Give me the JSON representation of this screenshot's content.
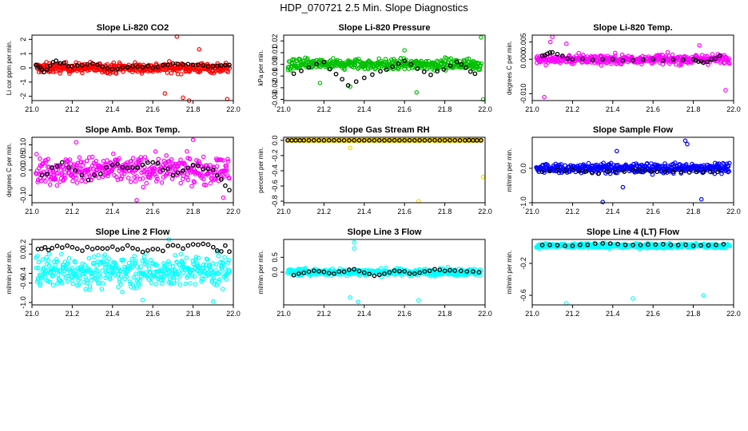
{
  "figure_title": "HDP_070721  2.5 Min. Slope Diagnostics",
  "chart_data": [
    {
      "type": "scatter",
      "title": "Slope Li-820 CO2",
      "ylabel": "Li cor ppm per min.",
      "xlim": [
        21.0,
        22.0
      ],
      "ylim": [
        -2.3,
        2.3
      ],
      "xticks": [
        "21.0",
        "21.2",
        "21.4",
        "21.6",
        "21.8",
        "22.0"
      ],
      "yticks": [
        "-2",
        "-1",
        "0",
        "1",
        "2"
      ],
      "colors": {
        "primary": "#ff0000",
        "secondary": "#000000"
      },
      "noise": {
        "spread": 0.3,
        "center": 0.0,
        "outliers": [
          [
            21.72,
            2.2
          ],
          [
            21.75,
            -2.1
          ],
          [
            21.78,
            -2.3
          ],
          [
            21.97,
            -2.2
          ],
          [
            21.83,
            1.3
          ],
          [
            21.66,
            -1.8
          ]
        ]
      },
      "series": [
        {
          "values": [
            [
              21.02,
              0.2
            ],
            [
              21.06,
              -0.3
            ],
            [
              21.12,
              0.5
            ],
            [
              21.2,
              0.1
            ],
            [
              21.3,
              0.3
            ],
            [
              21.4,
              -0.1
            ],
            [
              21.5,
              0.1
            ],
            [
              21.6,
              0.0
            ],
            [
              21.7,
              0.3
            ],
            [
              21.8,
              0.2
            ],
            [
              21.9,
              0.1
            ],
            [
              21.98,
              0.2
            ]
          ]
        }
      ]
    },
    {
      "type": "scatter",
      "title": "Slope Li-820 Pressure",
      "ylabel": "kPa per min.",
      "xlim": [
        21.0,
        22.0
      ],
      "ylim": [
        -0.031,
        0.025
      ],
      "xticks": [
        "21.0",
        "21.2",
        "21.4",
        "21.6",
        "21.8",
        "22.0"
      ],
      "yticks": [
        "-0.03",
        "-0.02",
        "-0.01",
        "0.00",
        "0.01",
        "0.02"
      ],
      "colors": {
        "primary": "#00c000",
        "secondary": "#000000"
      },
      "noise": {
        "spread": 0.004,
        "center": 0.0,
        "outliers": [
          [
            21.33,
            -0.019
          ],
          [
            21.66,
            -0.024
          ],
          [
            21.98,
            0.023
          ],
          [
            21.99,
            -0.03
          ],
          [
            21.18,
            -0.016
          ],
          [
            21.6,
            0.012
          ]
        ]
      },
      "series": [
        {
          "values": [
            [
              21.05,
              -0.008
            ],
            [
              21.2,
              0.002
            ],
            [
              21.32,
              -0.018
            ],
            [
              21.48,
              -0.006
            ],
            [
              21.6,
              0.003
            ],
            [
              21.73,
              -0.009
            ],
            [
              21.86,
              0.002
            ],
            [
              21.95,
              -0.008
            ]
          ]
        }
      ]
    },
    {
      "type": "scatter",
      "title": "Slope Li-820 Temp.",
      "ylabel": "degrees C per min.",
      "xlim": [
        21.0,
        22.0
      ],
      "ylim": [
        -0.012,
        0.007
      ],
      "xticks": [
        "21.0",
        "21.2",
        "21.4",
        "21.6",
        "21.8",
        "22.0"
      ],
      "yticks": [
        "-0.010",
        "0.000",
        "0.005"
      ],
      "colors": {
        "primary": "#ff00ff",
        "secondary": "#000000"
      },
      "noise": {
        "spread": 0.0012,
        "center": 0.0,
        "outliers": [
          [
            21.06,
            -0.011
          ],
          [
            21.1,
            0.0065
          ],
          [
            21.09,
            0.005
          ],
          [
            21.17,
            0.0045
          ],
          [
            21.96,
            -0.009
          ],
          [
            21.83,
            0.004
          ]
        ]
      },
      "series": [
        {
          "values": [
            [
              21.05,
              0.001
            ],
            [
              21.1,
              0.002
            ],
            [
              21.2,
              0.0
            ],
            [
              21.4,
              0.0
            ],
            [
              21.6,
              0.0
            ],
            [
              21.8,
              0.0
            ],
            [
              21.85,
              -0.001
            ],
            [
              21.93,
              0.001
            ]
          ]
        }
      ]
    },
    {
      "type": "scatter",
      "title": "Slope Amb. Box Temp.",
      "ylabel": "degrees C per min.",
      "xlim": [
        21.0,
        22.0
      ],
      "ylim": [
        -0.13,
        0.13
      ],
      "xticks": [
        "21.0",
        "21.2",
        "21.4",
        "21.6",
        "21.8",
        "22.0"
      ],
      "yticks": [
        "-0.10",
        "0.00",
        "0.05",
        "0.10"
      ],
      "colors": {
        "primary": "#ff00ff",
        "secondary": "#000000"
      },
      "noise": {
        "spread": 0.045,
        "center": 0.0,
        "outliers": [
          [
            21.22,
            0.11
          ],
          [
            21.52,
            -0.12
          ],
          [
            21.8,
            0.12
          ],
          [
            21.95,
            -0.11
          ]
        ]
      },
      "series": [
        {
          "values": [
            [
              21.05,
              -0.02
            ],
            [
              21.15,
              0.03
            ],
            [
              21.28,
              -0.04
            ],
            [
              21.4,
              0.02
            ],
            [
              21.5,
              0.01
            ],
            [
              21.6,
              0.03
            ],
            [
              21.7,
              -0.02
            ],
            [
              21.8,
              0.02
            ],
            [
              21.9,
              0.0
            ],
            [
              21.98,
              -0.08
            ]
          ]
        }
      ]
    },
    {
      "type": "scatter",
      "title": "Slope Gas Stream RH",
      "ylabel": "percent per min.",
      "xlim": [
        21.0,
        22.0
      ],
      "ylim": [
        -0.82,
        0.04
      ],
      "xticks": [
        "21.0",
        "21.2",
        "21.4",
        "21.6",
        "21.8",
        "22.0"
      ],
      "yticks": [
        "-0.8",
        "-0.6",
        "-0.4",
        "-0.2",
        "0.0"
      ],
      "colors": {
        "primary": "#ffd700",
        "secondary": "#000000"
      },
      "noise": {
        "spread": 0.004,
        "center": 0.0,
        "outliers": [
          [
            21.33,
            -0.1
          ],
          [
            21.67,
            -0.8
          ],
          [
            21.99,
            -0.48
          ]
        ]
      },
      "series": [
        {
          "values": [
            [
              21.02,
              0.0
            ],
            [
              21.1,
              0.0
            ],
            [
              21.2,
              0.0
            ],
            [
              21.3,
              0.0
            ],
            [
              21.4,
              0.0
            ],
            [
              21.5,
              0.0
            ],
            [
              21.6,
              0.0
            ],
            [
              21.7,
              0.0
            ],
            [
              21.8,
              0.0
            ],
            [
              21.9,
              0.0
            ],
            [
              21.98,
              0.0
            ]
          ]
        }
      ]
    },
    {
      "type": "scatter",
      "title": "Slope Sample Flow",
      "ylabel": "ml/min per min.",
      "xlim": [
        21.0,
        22.0
      ],
      "ylim": [
        -1.0,
        0.9
      ],
      "xticks": [
        "21.0",
        "21.2",
        "21.4",
        "21.6",
        "21.8",
        "22.0"
      ],
      "yticks": [
        "-1.0",
        "0.0"
      ],
      "colors": {
        "primary": "#0000ff",
        "secondary": "#000000"
      },
      "noise": {
        "spread": 0.12,
        "center": 0.0,
        "outliers": [
          [
            21.35,
            -0.98
          ],
          [
            21.76,
            0.8
          ],
          [
            21.77,
            0.7
          ],
          [
            21.84,
            -0.9
          ],
          [
            21.42,
            0.5
          ],
          [
            21.45,
            -0.55
          ]
        ]
      },
      "series": [
        {
          "values": [
            [
              21.05,
              -0.1
            ],
            [
              21.2,
              -0.05
            ],
            [
              21.33,
              -0.15
            ],
            [
              21.5,
              -0.05
            ],
            [
              21.62,
              -0.1
            ],
            [
              21.78,
              -0.12
            ],
            [
              21.92,
              -0.1
            ]
          ]
        }
      ]
    },
    {
      "type": "scatter",
      "title": "Slope Line 2 Flow",
      "ylabel": "ml/min per min.",
      "xlim": [
        21.0,
        22.0
      ],
      "ylim": [
        -1.05,
        0.3
      ],
      "xticks": [
        "21.0",
        "21.2",
        "21.4",
        "21.6",
        "21.8",
        "22.0"
      ],
      "yticks": [
        "-1.0",
        "-0.6",
        "-0.4",
        "0.0",
        "0.2"
      ],
      "colors": {
        "primary": "#00ffff",
        "secondary": "#000000"
      },
      "noise": {
        "spread": 0.28,
        "center": -0.35,
        "outliers": [
          [
            21.55,
            -0.95
          ],
          [
            21.9,
            -0.98
          ],
          [
            21.68,
            0.3
          ]
        ]
      },
      "series": [
        {
          "values": [
            [
              21.03,
              0.1
            ],
            [
              21.1,
              0.12
            ],
            [
              21.2,
              0.14
            ],
            [
              21.3,
              0.1
            ],
            [
              21.4,
              0.15
            ],
            [
              21.5,
              0.12
            ],
            [
              21.6,
              0.1
            ],
            [
              21.7,
              0.18
            ],
            [
              21.8,
              0.2
            ],
            [
              21.9,
              0.14
            ],
            [
              21.98,
              0.05
            ]
          ]
        }
      ]
    },
    {
      "type": "scatter",
      "title": "Slope Line 3 Flow",
      "ylabel": "ml/min per min.",
      "xlim": [
        21.0,
        22.0
      ],
      "ylim": [
        -1.1,
        1.1
      ],
      "xticks": [
        "21.0",
        "21.2",
        "21.4",
        "21.6",
        "21.8",
        "22.0"
      ],
      "yticks": [
        "0.0",
        "0.5"
      ],
      "colors": {
        "primary": "#00ffff",
        "secondary": "#000000"
      },
      "noise": {
        "spread": 0.1,
        "center": 0.0,
        "outliers": [
          [
            21.35,
            1.0
          ],
          [
            21.33,
            -0.85
          ],
          [
            21.37,
            -1.0
          ],
          [
            21.35,
            0.8
          ],
          [
            21.67,
            -0.95
          ]
        ]
      },
      "series": [
        {
          "values": [
            [
              21.05,
              -0.1
            ],
            [
              21.15,
              0.05
            ],
            [
              21.25,
              -0.05
            ],
            [
              21.35,
              0.1
            ],
            [
              21.45,
              -0.12
            ],
            [
              21.55,
              0.05
            ],
            [
              21.65,
              -0.05
            ],
            [
              21.75,
              0.1
            ],
            [
              21.85,
              0.05
            ],
            [
              21.97,
              0.0
            ]
          ]
        }
      ]
    },
    {
      "type": "scatter",
      "title": "Slope Line 4 (LT) Flow",
      "ylabel": "ml/min per min.",
      "xlim": [
        21.0,
        22.0
      ],
      "ylim": [
        -0.72,
        0.1
      ],
      "xticks": [
        "21.0",
        "21.2",
        "21.4",
        "21.6",
        "21.8",
        "22.0"
      ],
      "yticks": [
        "-0.6",
        "-0.2"
      ],
      "colors": {
        "primary": "#00ffff",
        "secondary": "#000000"
      },
      "noise": {
        "spread": 0.025,
        "center": 0.02,
        "outliers": [
          [
            21.17,
            -0.7
          ],
          [
            21.5,
            -0.64
          ],
          [
            21.85,
            -0.6
          ]
        ]
      },
      "series": [
        {
          "values": [
            [
              21.05,
              0.03
            ],
            [
              21.2,
              0.02
            ],
            [
              21.35,
              0.05
            ],
            [
              21.5,
              0.03
            ],
            [
              21.65,
              0.04
            ],
            [
              21.8,
              0.02
            ],
            [
              21.95,
              0.04
            ]
          ]
        }
      ]
    }
  ]
}
